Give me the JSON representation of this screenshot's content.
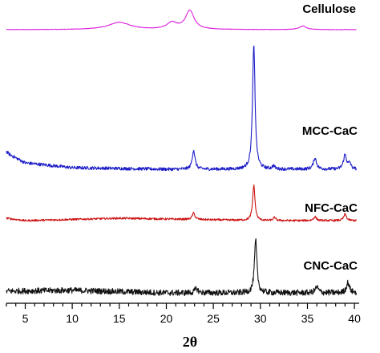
{
  "chart_data": {
    "type": "line",
    "title": "",
    "xlabel": "2θ",
    "ylabel": "",
    "xlim": [
      3,
      40.5
    ],
    "x_ticks": [
      5,
      10,
      15,
      20,
      25,
      30,
      35,
      40
    ],
    "grid": false,
    "legend": "none",
    "series": [
      {
        "name": "Cellulose",
        "color": "#dd22dd",
        "noise": 0.003,
        "peaks": [
          {
            "pos": 15.0,
            "height": 0.1,
            "width": 2.8
          },
          {
            "pos": 20.6,
            "height": 0.09,
            "width": 1.3
          },
          {
            "pos": 22.5,
            "height": 0.26,
            "width": 1.1
          },
          {
            "pos": 34.5,
            "height": 0.05,
            "width": 0.9
          }
        ],
        "baseline": [
          [
            3,
            0.0
          ],
          [
            40,
            0.0
          ]
        ]
      },
      {
        "name": "MCC-CaC",
        "color": "#1c1cc8",
        "noise": 0.02,
        "peaks": [
          {
            "pos": 22.9,
            "height": 0.24,
            "width": 0.35
          },
          {
            "pos": 29.3,
            "height": 1.55,
            "width": 0.32
          },
          {
            "pos": 31.4,
            "height": 0.04,
            "width": 0.3
          },
          {
            "pos": 35.8,
            "height": 0.14,
            "width": 0.4
          },
          {
            "pos": 39.0,
            "height": 0.18,
            "width": 0.4
          },
          {
            "pos": 39.5,
            "height": 0.07,
            "width": 0.3
          }
        ],
        "baseline": [
          [
            3,
            0.22
          ],
          [
            3.4,
            0.18
          ],
          [
            5,
            0.08
          ],
          [
            10,
            0.02
          ],
          [
            20,
            0.0
          ],
          [
            40,
            0.0
          ]
        ]
      },
      {
        "name": "NFC-CaC",
        "color": "#cc1111",
        "noise": 0.012,
        "peaks": [
          {
            "pos": 22.9,
            "height": 0.08,
            "width": 0.35
          },
          {
            "pos": 29.3,
            "height": 0.44,
            "width": 0.3
          },
          {
            "pos": 31.5,
            "height": 0.04,
            "width": 0.3
          },
          {
            "pos": 35.8,
            "height": 0.05,
            "width": 0.35
          },
          {
            "pos": 39.0,
            "height": 0.08,
            "width": 0.35
          }
        ],
        "baseline": [
          [
            3,
            0.03
          ],
          [
            5,
            0.0
          ],
          [
            15,
            0.03
          ],
          [
            30,
            0.0
          ],
          [
            40,
            0.0
          ]
        ]
      },
      {
        "name": "CNC-CaC",
        "color": "#111111",
        "noise": 0.035,
        "peaks": [
          {
            "pos": 23.2,
            "height": 0.05,
            "width": 0.4
          },
          {
            "pos": 29.5,
            "height": 0.62,
            "width": 0.32
          },
          {
            "pos": 36.0,
            "height": 0.07,
            "width": 0.4
          },
          {
            "pos": 39.3,
            "height": 0.12,
            "width": 0.4
          }
        ],
        "baseline": [
          [
            3,
            0.02
          ],
          [
            10,
            0.03
          ],
          [
            20,
            0.0
          ],
          [
            40,
            0.0
          ]
        ]
      }
    ]
  }
}
